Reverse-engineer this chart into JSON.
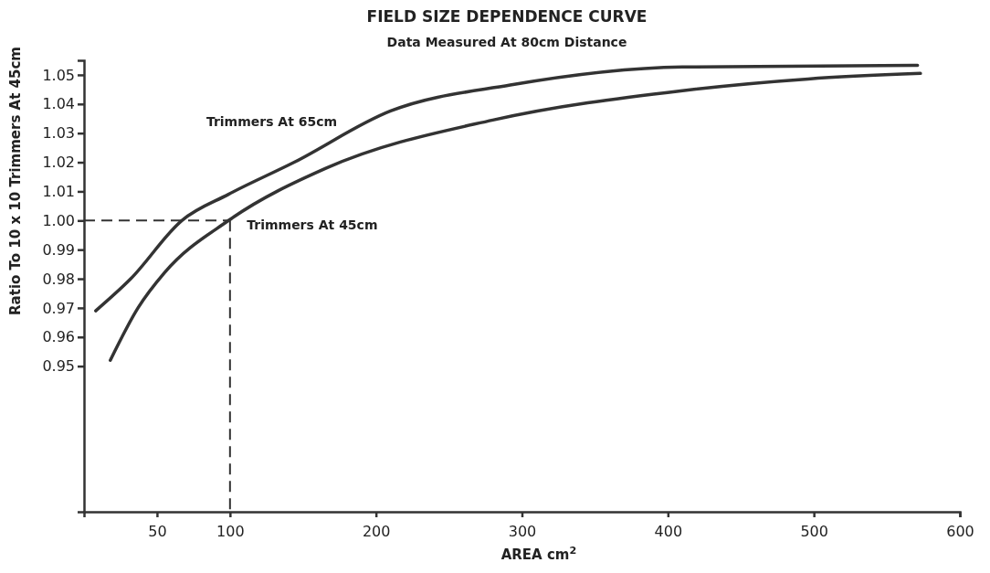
{
  "chart_data": {
    "type": "line",
    "title": "FIELD SIZE DEPENDENCE CURVE",
    "subtitle": "Data Measured At 80cm Distance",
    "xlabel": "AREA cm$^{2}$",
    "ylabel": "Ratio To 10 x 10 Trimmers At 45cm",
    "xlim": [
      0,
      600
    ],
    "xticks": [
      50,
      100,
      200,
      300,
      400,
      500,
      600
    ],
    "ylim": [
      0.9,
      1.055
    ],
    "yticks": [
      0.95,
      0.96,
      0.97,
      0.98,
      0.99,
      {
        "value": 1.0,
        "label": "1.00"
      },
      1.01,
      1.02,
      1.03,
      1.04,
      1.05
    ],
    "grid": false,
    "legend": false,
    "marker": "none",
    "line_style": "solid",
    "series": [
      {
        "name": "Trimmers At 65cm",
        "color": "#333333",
        "x": [
          8,
          32,
          67,
          99,
          144,
          210,
          292,
          410,
          571
        ],
        "values": [
          0.969,
          0.98,
          1.0,
          1.009,
          1.02,
          1.0376,
          1.0465,
          1.0527,
          1.0533
        ]
      },
      {
        "name": "Trimmers At 45cm",
        "color": "#333333",
        "x": [
          18,
          37,
          55,
          99,
          166,
          280,
          410,
          496,
          573
        ],
        "values": [
          0.952,
          0.97,
          0.982,
          1.0,
          1.018,
          1.0345,
          1.0446,
          1.0486,
          1.0505
        ]
      }
    ],
    "ref_lines": [
      {
        "axis": "y",
        "value": 1.0,
        "line_style": "dashed",
        "color": "#333333"
      },
      {
        "axis": "x",
        "value": 100,
        "line_style": "dashed",
        "color": "#333333"
      }
    ]
  }
}
